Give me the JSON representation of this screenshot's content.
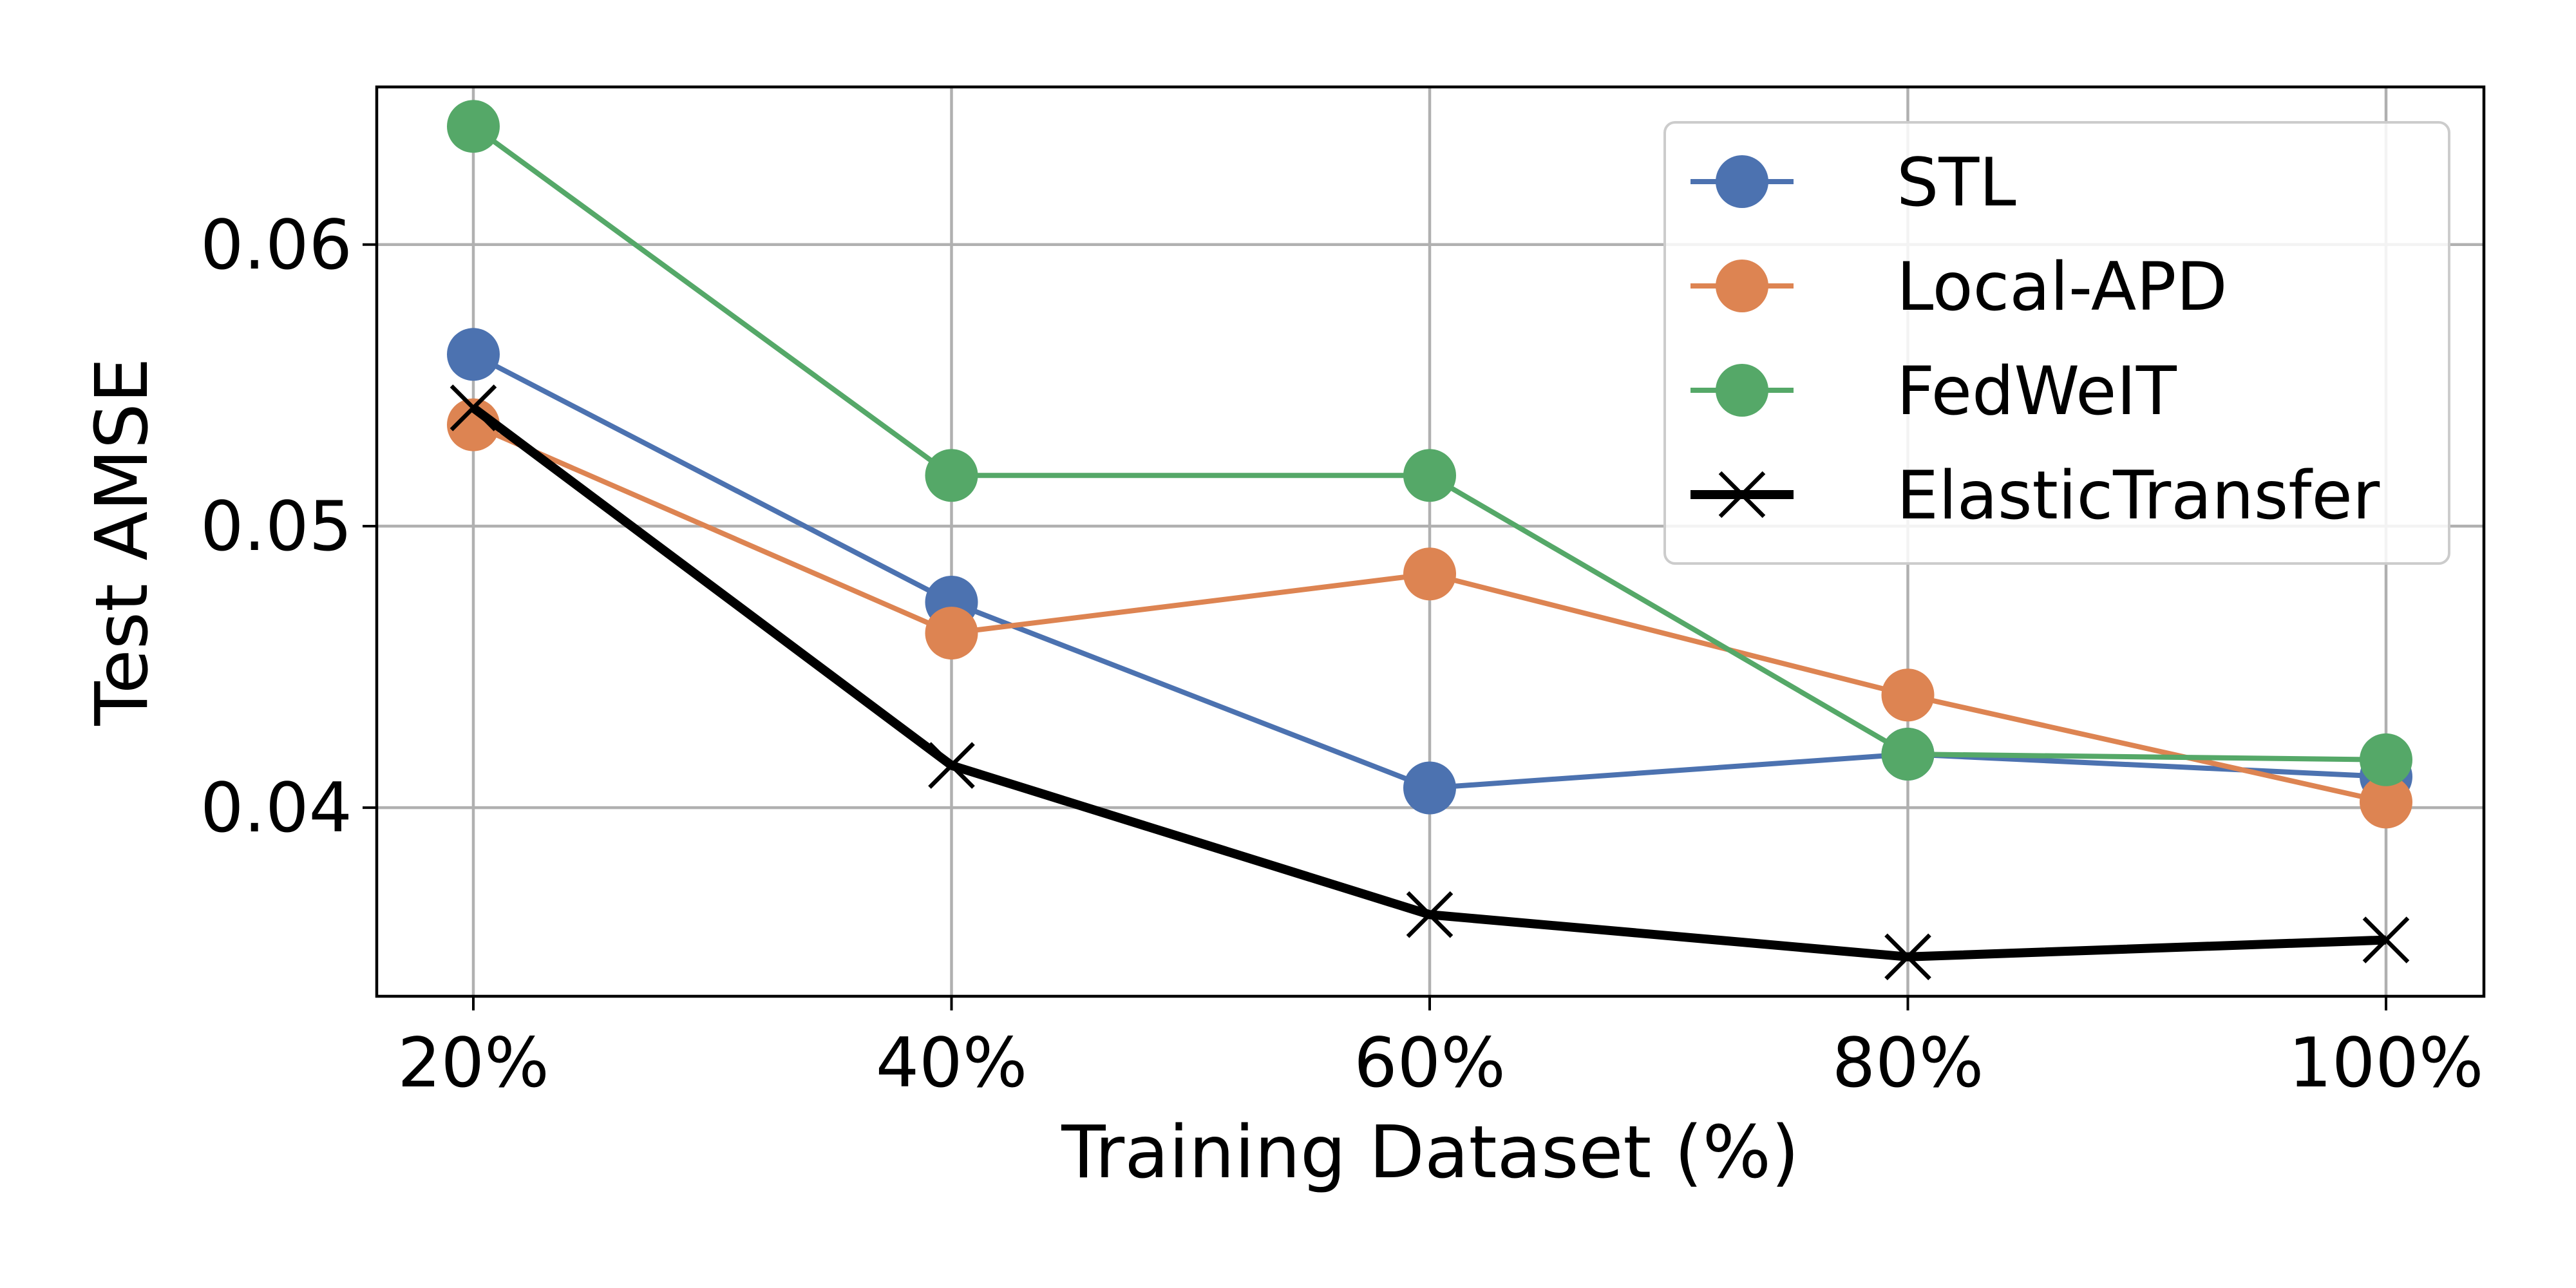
{
  "chart_data": {
    "type": "line",
    "xlabel": "Training Dataset (%)",
    "ylabel": "Test AMSE",
    "categories": [
      "20%",
      "40%",
      "60%",
      "80%",
      "100%"
    ],
    "ylim": [
      0.0333,
      0.0656
    ],
    "yticks": [
      0.04,
      0.05,
      0.06
    ],
    "ytick_labels": [
      "0.04",
      "0.05",
      "0.06"
    ],
    "grid": true,
    "legend_position": "top-right",
    "series": [
      {
        "name": "STL",
        "color": "#4c72b0",
        "marker": "circle",
        "values": [
          0.0561,
          0.0473,
          0.0407,
          0.0419,
          0.0411
        ]
      },
      {
        "name": "Local-APD",
        "color": "#dd8452",
        "marker": "circle",
        "values": [
          0.0536,
          0.0462,
          0.0483,
          0.044,
          0.0402
        ]
      },
      {
        "name": "FedWeIT",
        "color": "#55a868",
        "marker": "circle",
        "values": [
          0.0642,
          0.0518,
          0.0518,
          0.0419,
          0.0417
        ]
      },
      {
        "name": "ElasticTransfer",
        "color": "#000000",
        "marker": "x",
        "values": [
          0.0542,
          0.0415,
          0.0362,
          0.0347,
          0.0353
        ]
      }
    ]
  }
}
